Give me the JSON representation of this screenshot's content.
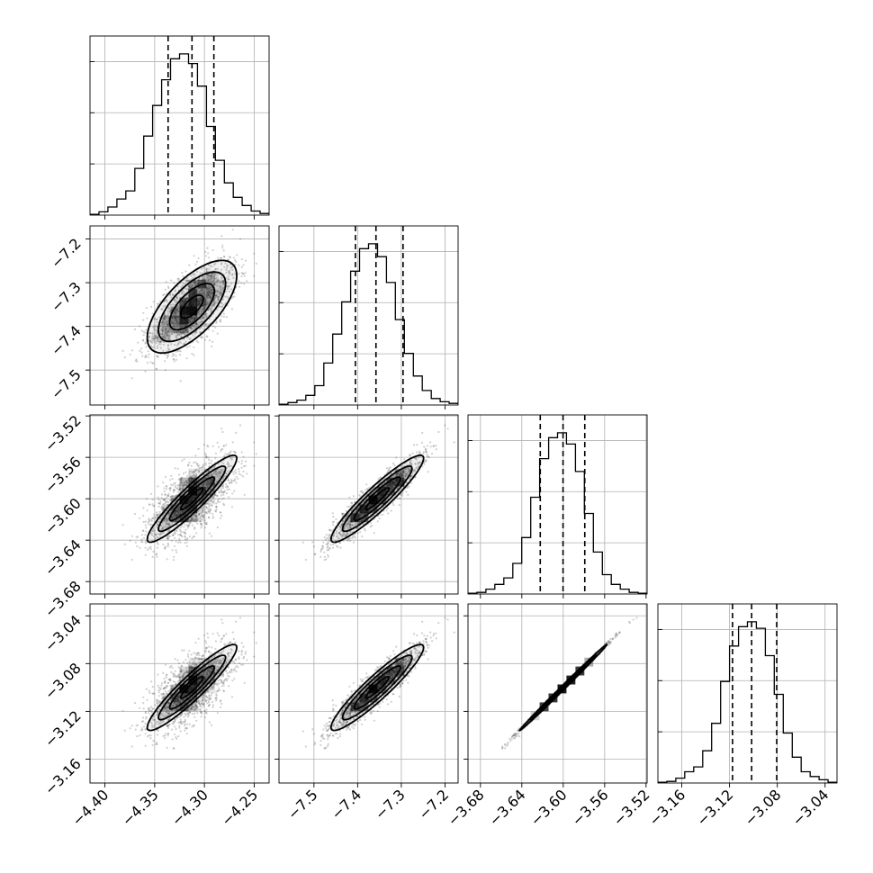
{
  "chart_data": {
    "type": "corner",
    "title": "",
    "parameters": [
      {
        "name": "",
        "range": [
          -4.415,
          -4.235
        ],
        "ticks": [
          -4.4,
          -4.35,
          -4.3,
          -4.25
        ],
        "tick_labels": [
          "−4.40",
          "−4.35",
          "−4.30",
          "−4.25"
        ],
        "quantiles": [
          -4.3365,
          -4.3125,
          -4.2905
        ],
        "mean": -4.3125,
        "sd": 0.0225
      },
      {
        "name": "",
        "range": [
          -7.58,
          -7.17
        ],
        "ticks": [
          -7.5,
          -7.4,
          -7.3,
          -7.2
        ],
        "tick_labels": [
          "−7.5",
          "−7.4",
          "−7.3",
          "−7.2"
        ],
        "quantiles": [
          -7.405,
          -7.358,
          -7.296
        ],
        "mean": -7.355,
        "sd": 0.053
      },
      {
        "name": "",
        "range": [
          -3.692,
          -3.519
        ],
        "ticks": [
          -3.68,
          -3.64,
          -3.6,
          -3.56,
          -3.52
        ],
        "tick_labels": [
          "−3.68",
          "−3.64",
          "−3.60",
          "−3.56",
          "−3.52"
        ],
        "quantiles": [
          -3.6222,
          -3.6002,
          -3.5792
        ],
        "mean": -3.6,
        "sd": 0.021
      },
      {
        "name": "",
        "range": [
          -3.18,
          -3.03
        ],
        "ticks": [
          -3.16,
          -3.12,
          -3.08,
          -3.04
        ],
        "tick_labels": [
          "−3.16",
          "−3.12",
          "−3.08",
          "−3.04"
        ],
        "quantiles": [
          -3.1175,
          -3.1015,
          -3.0805
        ],
        "mean": -3.1,
        "sd": 0.018
      }
    ],
    "histograms": [
      [
        0.005,
        0.02,
        0.05,
        0.1,
        0.15,
        0.29,
        0.49,
        0.68,
        0.84,
        0.97,
        1.0,
        0.94,
        0.8,
        0.55,
        0.34,
        0.2,
        0.11,
        0.06,
        0.025,
        0.01
      ],
      [
        0.005,
        0.015,
        0.03,
        0.06,
        0.12,
        0.26,
        0.44,
        0.64,
        0.83,
        0.97,
        1.0,
        0.92,
        0.76,
        0.53,
        0.32,
        0.18,
        0.09,
        0.04,
        0.02,
        0.01
      ],
      [
        0.005,
        0.01,
        0.03,
        0.06,
        0.1,
        0.19,
        0.35,
        0.6,
        0.84,
        0.97,
        1.0,
        0.93,
        0.76,
        0.5,
        0.26,
        0.12,
        0.06,
        0.03,
        0.01,
        0.005
      ],
      [
        0.005,
        0.01,
        0.03,
        0.07,
        0.1,
        0.2,
        0.37,
        0.63,
        0.85,
        0.97,
        1.0,
        0.96,
        0.79,
        0.55,
        0.31,
        0.16,
        0.07,
        0.04,
        0.02,
        0.005
      ]
    ],
    "correlations": [
      [
        1,
        0.67,
        0.93,
        0.93
      ],
      [
        0.67,
        1,
        0.93,
        0.93
      ],
      [
        0.93,
        0.93,
        1,
        0.998
      ],
      [
        0.93,
        0.93,
        0.998,
        1
      ]
    ],
    "contour_levels_sigma": [
      0.5,
      1.0,
      1.5,
      2.0
    ],
    "grid": true,
    "colors": {
      "points": "#555555",
      "density": "#000000",
      "lines": "#000000"
    }
  }
}
